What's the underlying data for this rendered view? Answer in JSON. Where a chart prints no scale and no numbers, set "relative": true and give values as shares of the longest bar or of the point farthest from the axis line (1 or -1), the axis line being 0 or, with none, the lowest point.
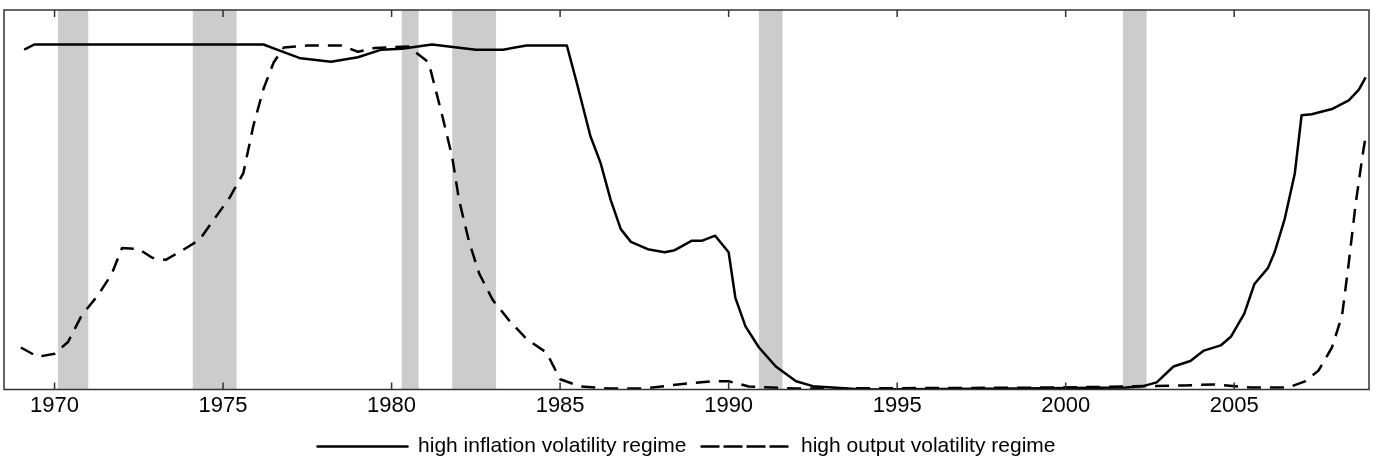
{
  "chart_data": {
    "type": "line",
    "relative": true,
    "xlim": [
      1968.5,
      2009
    ],
    "xticks": [
      1970,
      1975,
      1980,
      1985,
      1990,
      1995,
      2000,
      2005
    ],
    "grid": false,
    "legend": "bottom",
    "marker": "none",
    "bands": [
      {
        "axis": "x",
        "from": 1970.1,
        "to": 1971.0,
        "color": "#cccccc"
      },
      {
        "axis": "x",
        "from": 1974.1,
        "to": 1975.4,
        "color": "#cccccc"
      },
      {
        "axis": "x",
        "from": 1980.3,
        "to": 1980.8,
        "color": "#cccccc"
      },
      {
        "axis": "x",
        "from": 1981.8,
        "to": 1983.1,
        "color": "#cccccc"
      },
      {
        "axis": "x",
        "from": 1990.9,
        "to": 1991.6,
        "color": "#cccccc"
      },
      {
        "axis": "x",
        "from": 2001.7,
        "to": 2002.4,
        "color": "#cccccc"
      }
    ],
    "series": [
      {
        "name": "high inflation volatility regime",
        "color": "#000000",
        "line_style": "solid",
        "x": [
          1969.1,
          1969.4,
          1972,
          1976.2,
          1976.6,
          1977.3,
          1978.2,
          1979.0,
          1979.7,
          1980.3,
          1981.2,
          1982.5,
          1983.3,
          1984.0,
          1985.2,
          1985.5,
          1985.9,
          1986.2,
          1986.5,
          1986.8,
          1987.1,
          1987.6,
          1988.1,
          1988.4,
          1988.9,
          1989.2,
          1989.6,
          1990.0,
          1990.2,
          1990.5,
          1990.9,
          1991.4,
          1992.0,
          1992.5,
          1994,
          2001.8,
          2002.3,
          2002.7,
          2003.2,
          2003.7,
          2004.1,
          2004.6,
          2004.9,
          2005.3,
          2005.6,
          2006.0,
          2006.2,
          2006.5,
          2006.8,
          2007.0,
          2007.3,
          2007.9,
          2008.4,
          2008.7,
          2008.9
        ],
        "values": [
          0.985,
          1.0,
          1.0,
          1.0,
          0.985,
          0.96,
          0.95,
          0.963,
          0.985,
          0.988,
          1.0,
          0.985,
          0.985,
          0.997,
          0.997,
          0.887,
          0.734,
          0.657,
          0.55,
          0.465,
          0.428,
          0.407,
          0.398,
          0.404,
          0.431,
          0.431,
          0.446,
          0.398,
          0.266,
          0.183,
          0.122,
          0.067,
          0.024,
          0.01,
          0,
          0.006,
          0.01,
          0.021,
          0.067,
          0.083,
          0.113,
          0.128,
          0.153,
          0.22,
          0.306,
          0.352,
          0.398,
          0.495,
          0.627,
          0.795,
          0.798,
          0.813,
          0.838,
          0.869,
          0.905
        ]
      },
      {
        "name": "high output volatility regime",
        "color": "#000000",
        "line_style": "dashed",
        "x": [
          1969.0,
          1969.5,
          1970.0,
          1970.4,
          1970.8,
          1971.3,
          1971.7,
          1972.0,
          1972.5,
          1972.9,
          1973.3,
          1973.8,
          1974.3,
          1974.7,
          1975.2,
          1975.6,
          1975.9,
          1976.2,
          1976.5,
          1976.8,
          1977.5,
          1978.5,
          1979.0,
          1979.5,
          1980.5,
          1981.1,
          1981.5,
          1981.8,
          1982.0,
          1982.3,
          1982.6,
          1983.0,
          1983.5,
          1984.0,
          1984.6,
          1985.0,
          1985.6,
          1986.5,
          1987.5,
          1988.5,
          1989.5,
          1990.0,
          1990.6,
          1992,
          1999.9,
          2003.5,
          2004.4,
          2005.5,
          2006.6,
          2007.1,
          2007.5,
          2007.9,
          2008.2,
          2008.4,
          2008.6,
          2008.8,
          2008.9
        ],
        "values": [
          0.122,
          0.095,
          0.104,
          0.138,
          0.214,
          0.275,
          0.336,
          0.41,
          0.407,
          0.382,
          0.376,
          0.404,
          0.434,
          0.489,
          0.557,
          0.627,
          0.765,
          0.872,
          0.948,
          0.991,
          0.997,
          0.997,
          0.979,
          0.99,
          0.994,
          0.948,
          0.795,
          0.673,
          0.55,
          0.428,
          0.336,
          0.26,
          0.199,
          0.147,
          0.107,
          0.03,
          0.009,
          0.003,
          0.003,
          0.015,
          0.024,
          0.024,
          0.009,
          0.003,
          0.006,
          0.012,
          0.015,
          0.006,
          0.006,
          0.024,
          0.055,
          0.122,
          0.214,
          0.367,
          0.535,
          0.673,
          0.734
        ]
      }
    ]
  }
}
